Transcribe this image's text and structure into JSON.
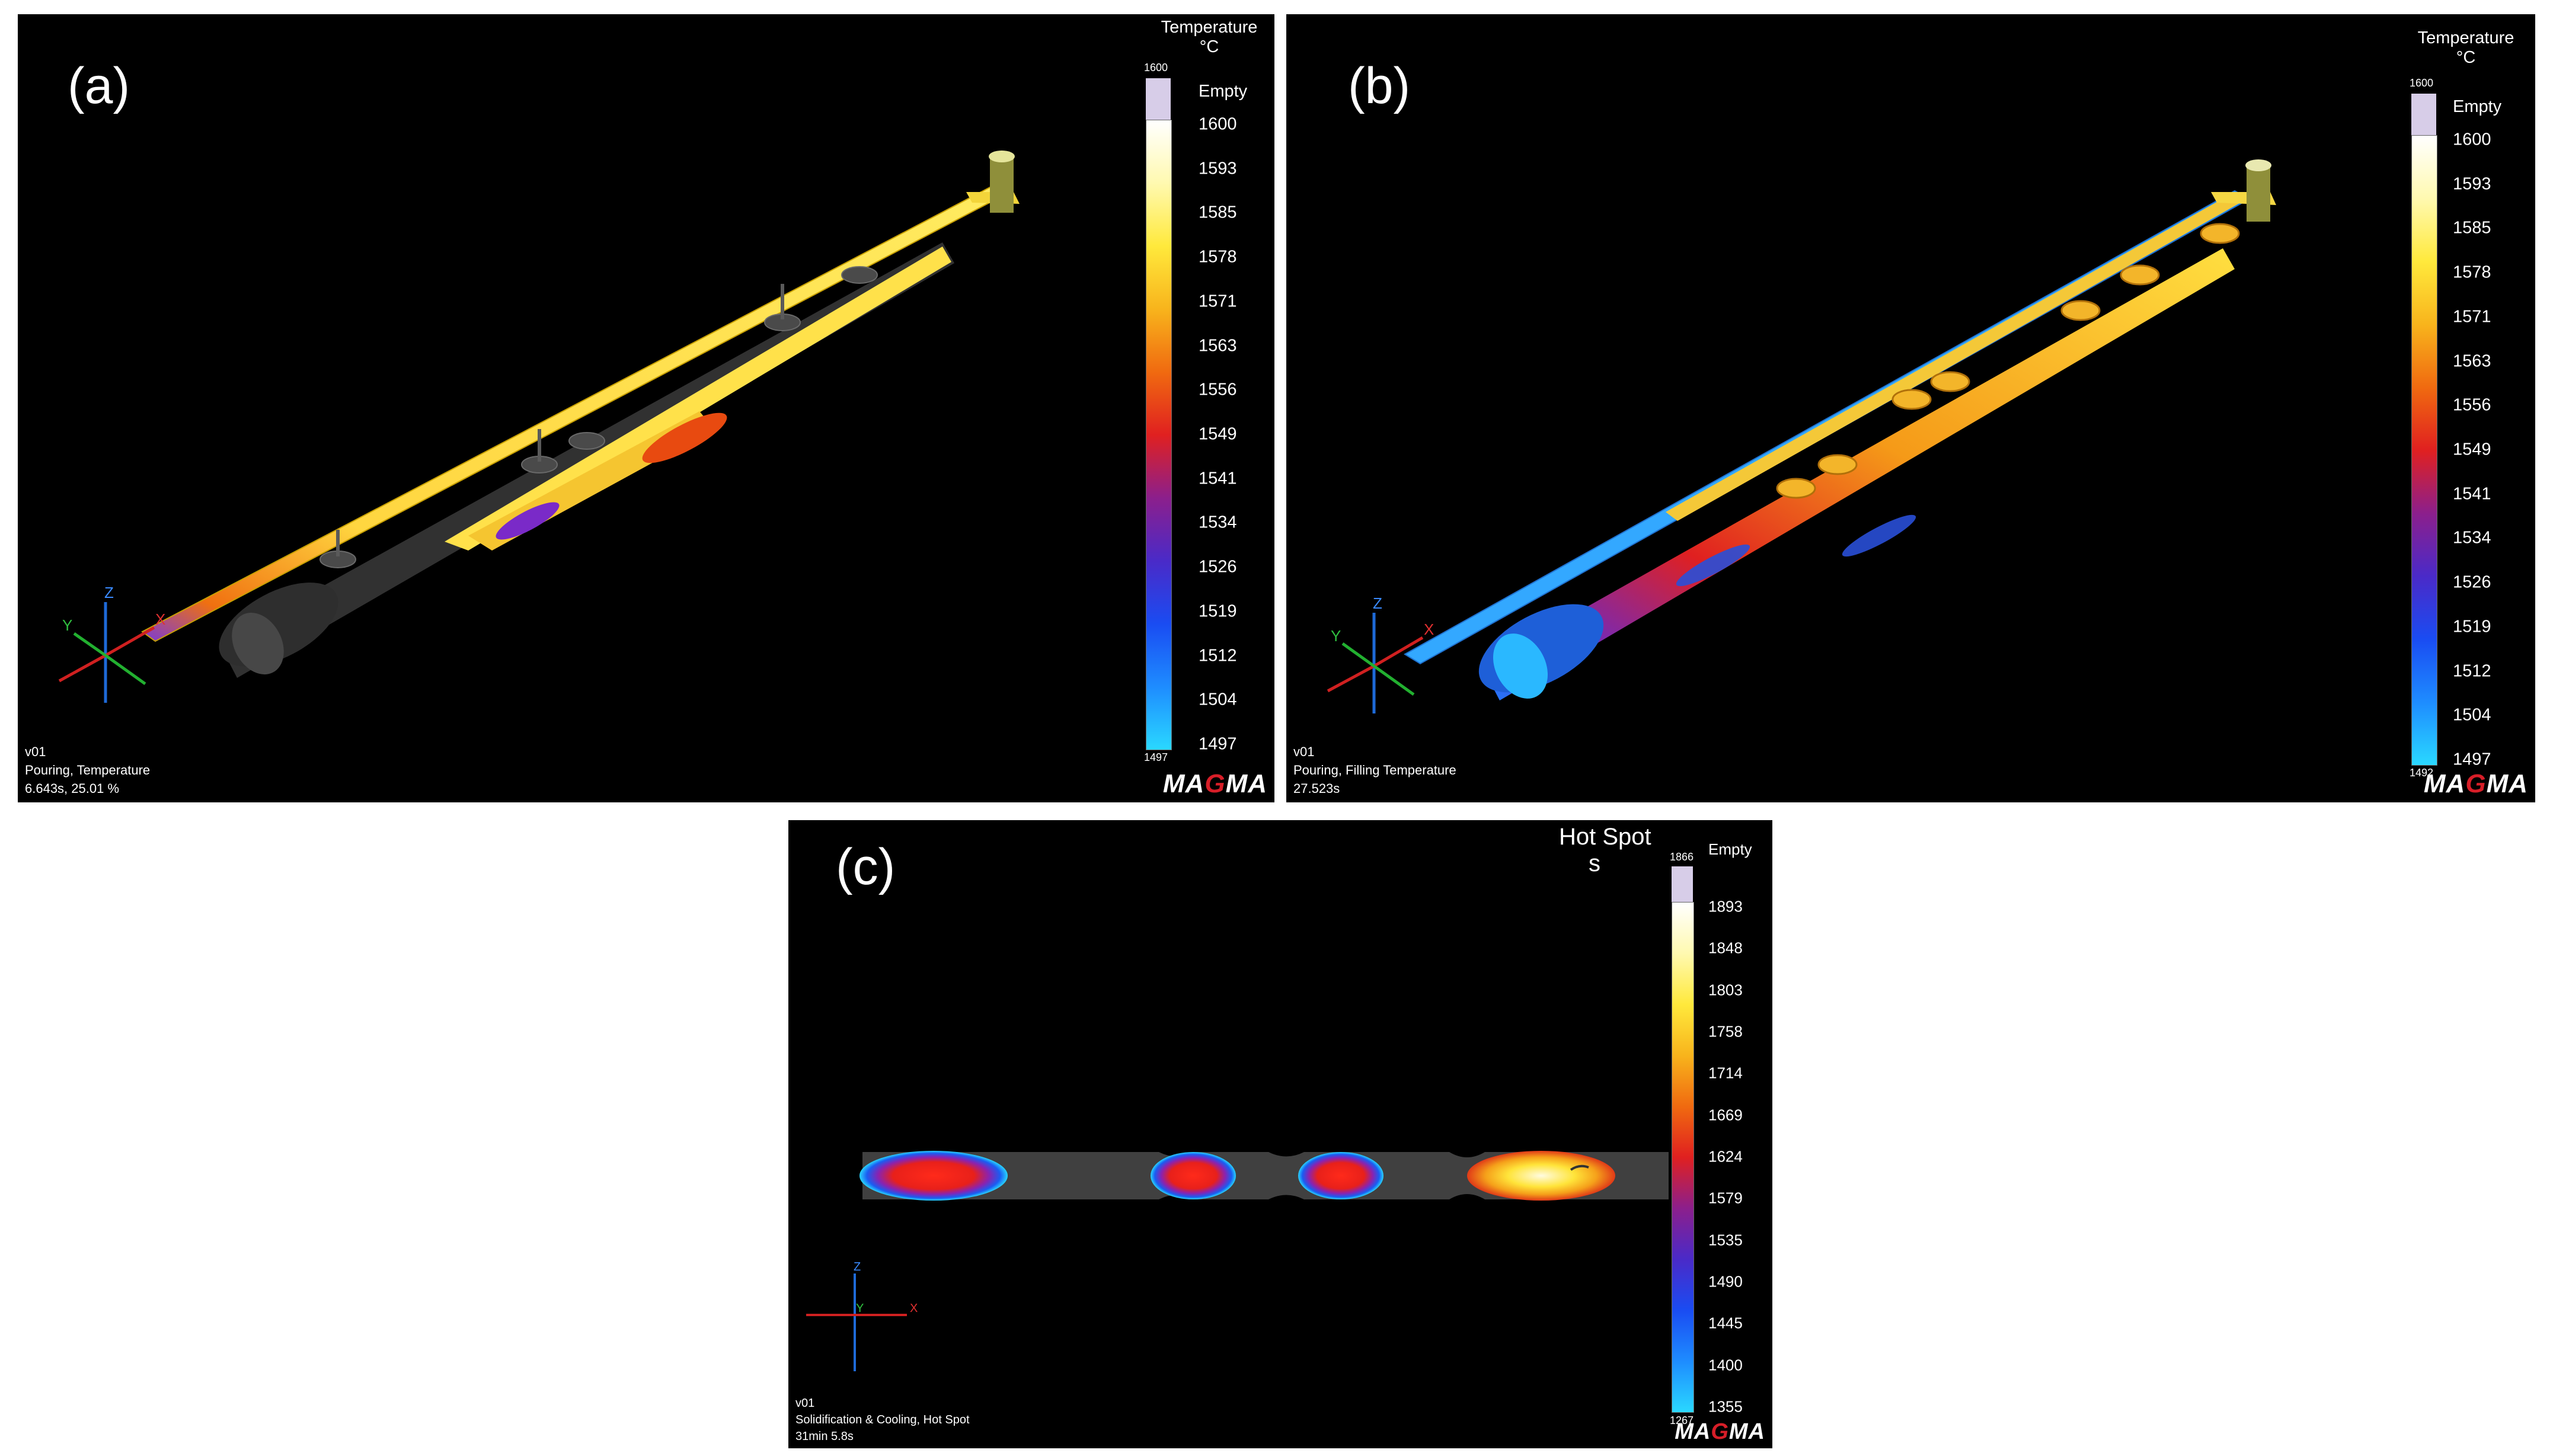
{
  "panels": {
    "a": {
      "label": "(a)",
      "legend": {
        "title_line1": "Temperature",
        "title_line2": "°C",
        "max_small": "1600",
        "min_small": "1497",
        "empty_label": "Empty",
        "ticks": [
          "1600",
          "1593",
          "1585",
          "1578",
          "1571",
          "1563",
          "1556",
          "1549",
          "1541",
          "1534",
          "1526",
          "1519",
          "1512",
          "1504",
          "1497"
        ]
      },
      "info": {
        "version": "v01",
        "process": "Pouring, Temperature",
        "time": "6.643s, 25.01 %"
      },
      "logo": "MAGMA"
    },
    "b": {
      "label": "(b)",
      "legend": {
        "title_line1": "Temperature",
        "title_line2": "°C",
        "max_small": "1600",
        "min_small": "1492",
        "empty_label": "Empty",
        "ticks": [
          "1600",
          "1593",
          "1585",
          "1578",
          "1571",
          "1563",
          "1556",
          "1549",
          "1541",
          "1534",
          "1526",
          "1519",
          "1512",
          "1504",
          "1497"
        ]
      },
      "info": {
        "version": "v01",
        "process": "Pouring, Filling Temperature",
        "time": "27.523s"
      },
      "logo": "MAGMA"
    },
    "c": {
      "label": "(c)",
      "legend": {
        "title_line1": "Hot Spot",
        "title_line2": "s",
        "max_small": "1866",
        "min_small": "1267",
        "empty_label": "Empty",
        "ticks": [
          "1893",
          "1848",
          "1803",
          "1758",
          "1714",
          "1669",
          "1624",
          "1579",
          "1535",
          "1490",
          "1445",
          "1400",
          "1355"
        ]
      },
      "info": {
        "version": "v01",
        "process": "Solidification & Cooling, Hot Spot",
        "time": "31min 5.8s"
      },
      "logo": "MAGMA"
    }
  },
  "axis_labels": {
    "x": "X",
    "y": "Y",
    "z": "Z"
  },
  "colormap": [
    "#ffffff",
    "#fff9b0",
    "#ffe93c",
    "#f8b41c",
    "#f06a10",
    "#e02020",
    "#8c1f8c",
    "#4a2ac8",
    "#1a4cf2",
    "#1e8cff",
    "#2ad8ff"
  ]
}
